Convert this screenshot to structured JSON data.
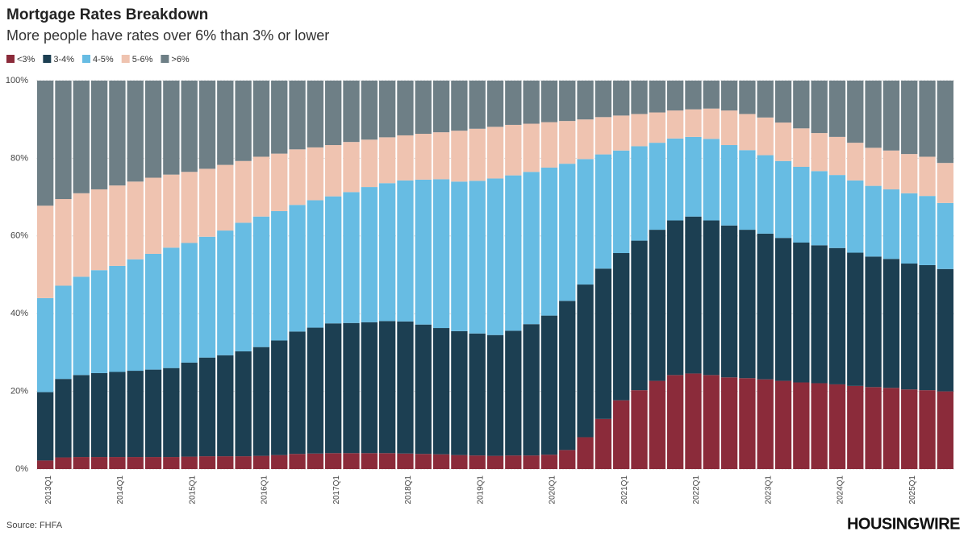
{
  "chart_data": {
    "type": "stacked_bar",
    "title": "Mortgage Rates Breakdown",
    "subtitle": "More people have rates over 6% than 3% or lower",
    "source": "Source: FHFA",
    "brand": "HOUSINGWIRE",
    "categories": [
      "2013Q1",
      null,
      null,
      null,
      "2014Q1",
      null,
      null,
      null,
      "2015Q1",
      null,
      null,
      null,
      "2016Q1",
      null,
      null,
      null,
      "2017Q1",
      null,
      null,
      null,
      "2018Q1",
      null,
      null,
      null,
      "2019Q1",
      null,
      null,
      null,
      "2020Q1",
      null,
      null,
      null,
      "2021Q1",
      null,
      null,
      null,
      "2022Q1",
      null,
      null,
      null,
      "2023Q1",
      null,
      null,
      null,
      "2024Q1",
      null,
      null,
      null,
      "2025Q1",
      null,
      null
    ],
    "series": [
      {
        "name": "<3%",
        "color": "#8b2b3a",
        "values": [
          2.2,
          3.0,
          3.1,
          3.1,
          3.1,
          3.1,
          3.1,
          3.1,
          3.2,
          3.3,
          3.3,
          3.3,
          3.4,
          3.6,
          3.9,
          4.0,
          4.1,
          4.1,
          4.1,
          4.1,
          4.0,
          3.9,
          3.8,
          3.6,
          3.5,
          3.4,
          3.5,
          3.5,
          3.7,
          4.9,
          8.2,
          12.9,
          17.7,
          20.3,
          22.7,
          24.2,
          24.6,
          24.2,
          23.6,
          23.4,
          23.1,
          22.7,
          22.3,
          22.1,
          21.8,
          21.4,
          21.1,
          20.9,
          20.5,
          20.3,
          20.0
        ]
      },
      {
        "name": "3-4%",
        "color": "#1c3f52",
        "values": [
          17.6,
          20.2,
          21.1,
          21.6,
          21.9,
          22.2,
          22.5,
          22.9,
          24.2,
          25.4,
          26.0,
          27.0,
          28.0,
          29.5,
          31.5,
          32.4,
          33.4,
          33.5,
          33.7,
          34.0,
          34.0,
          33.3,
          32.5,
          31.9,
          31.4,
          31.1,
          32.1,
          33.8,
          35.8,
          38.4,
          39.3,
          38.7,
          37.9,
          38.5,
          38.9,
          39.8,
          40.4,
          39.8,
          39.1,
          38.2,
          37.5,
          36.8,
          36.0,
          35.5,
          35.1,
          34.3,
          33.6,
          33.2,
          32.4,
          32.2,
          31.5
        ]
      },
      {
        "name": "4-5%",
        "color": "#67bce3",
        "values": [
          24.2,
          24.0,
          25.3,
          26.5,
          27.3,
          28.7,
          29.8,
          31.0,
          30.8,
          31.1,
          32.1,
          33.1,
          33.6,
          33.3,
          32.6,
          32.8,
          32.7,
          33.7,
          34.8,
          35.5,
          36.3,
          37.3,
          38.3,
          38.5,
          39.3,
          40.3,
          40.0,
          39.2,
          38.1,
          35.3,
          32.3,
          29.4,
          26.4,
          24.3,
          22.4,
          21.1,
          20.5,
          21.0,
          20.7,
          20.5,
          20.2,
          19.8,
          19.5,
          19.1,
          18.8,
          18.6,
          18.2,
          17.9,
          18.1,
          17.8,
          17.0
        ]
      },
      {
        "name": "5-6%",
        "color": "#efc3b0",
        "values": [
          23.8,
          22.3,
          21.5,
          20.8,
          20.7,
          20.0,
          19.6,
          18.8,
          18.3,
          17.5,
          16.9,
          15.9,
          15.4,
          14.8,
          14.3,
          13.6,
          13.2,
          12.9,
          12.2,
          11.8,
          11.6,
          11.8,
          12.1,
          13.1,
          13.4,
          13.3,
          13.0,
          12.4,
          11.7,
          11.0,
          10.2,
          9.6,
          9.0,
          8.3,
          7.8,
          7.2,
          7.1,
          7.8,
          8.9,
          9.3,
          9.7,
          9.9,
          9.9,
          9.8,
          9.8,
          9.7,
          9.8,
          10.0,
          10.1,
          10.1,
          10.3
        ]
      },
      {
        "name": ">6%",
        "color": "#6e7f86",
        "values": [
          32.2,
          30.5,
          29.0,
          28.0,
          27.0,
          26.0,
          25.0,
          24.2,
          23.5,
          22.7,
          21.7,
          20.7,
          19.6,
          18.8,
          17.7,
          17.2,
          16.6,
          15.8,
          15.2,
          14.6,
          14.1,
          13.7,
          13.3,
          12.9,
          12.4,
          11.9,
          11.4,
          11.1,
          10.7,
          10.4,
          10.0,
          9.4,
          9.0,
          8.6,
          8.2,
          7.7,
          7.4,
          7.2,
          7.7,
          8.6,
          9.5,
          10.8,
          12.3,
          13.5,
          14.5,
          16.0,
          17.3,
          18.0,
          18.9,
          19.6,
          21.2
        ]
      }
    ],
    "ylim": [
      0,
      100
    ],
    "yticks": [
      {
        "value": 0,
        "label": "0%"
      },
      {
        "value": 20,
        "label": "20%"
      },
      {
        "value": 40,
        "label": "40%"
      },
      {
        "value": 60,
        "label": "60%"
      },
      {
        "value": 80,
        "label": "80%"
      },
      {
        "value": 100,
        "label": "100%"
      }
    ],
    "grid": true,
    "legend": "top-left"
  }
}
